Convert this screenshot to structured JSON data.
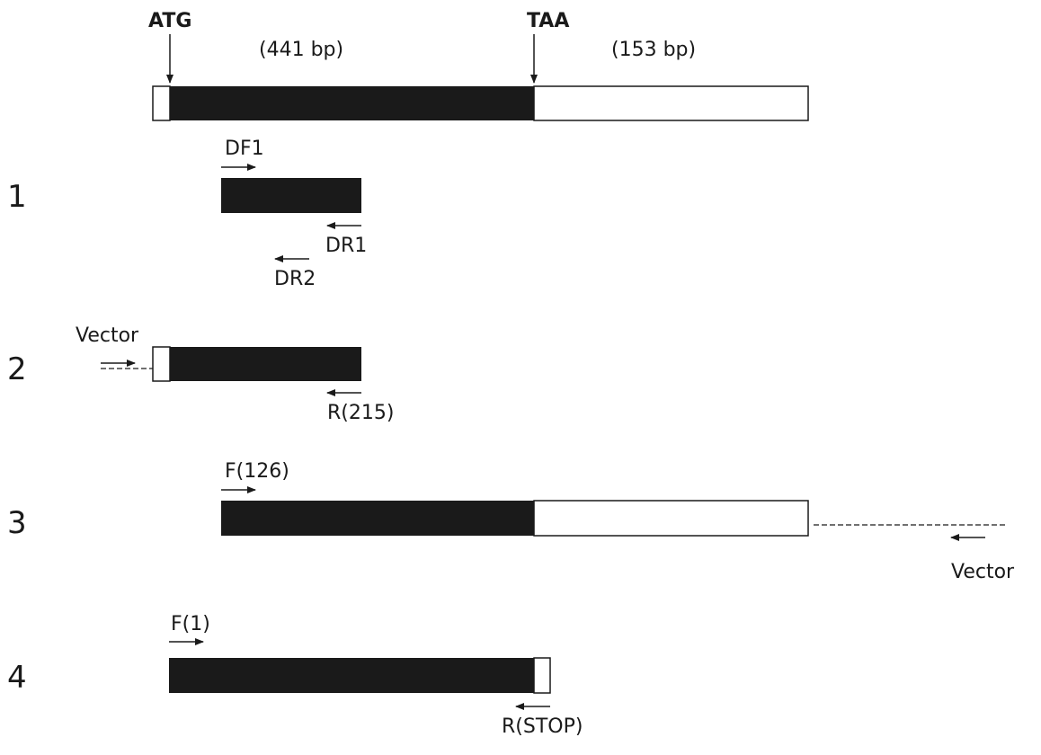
{
  "markers": {
    "start": "ATG",
    "stop": "TAA"
  },
  "lengths": {
    "coding": "(441 bp)",
    "utr": "(153 bp)"
  },
  "rows": [
    {
      "number": "1",
      "primers": [
        "DF1",
        "DR1",
        "DR2"
      ]
    },
    {
      "number": "2",
      "primers": [
        "Vector",
        "R(215)"
      ]
    },
    {
      "number": "3",
      "primers": [
        "F(126)",
        "Vector"
      ]
    },
    {
      "number": "4",
      "primers": [
        "F(1)",
        "R(STOP)"
      ]
    }
  ],
  "colors": {
    "coding": "#1a1a1a",
    "noncoding": "#ffffff",
    "line": "#1a1a1a"
  }
}
